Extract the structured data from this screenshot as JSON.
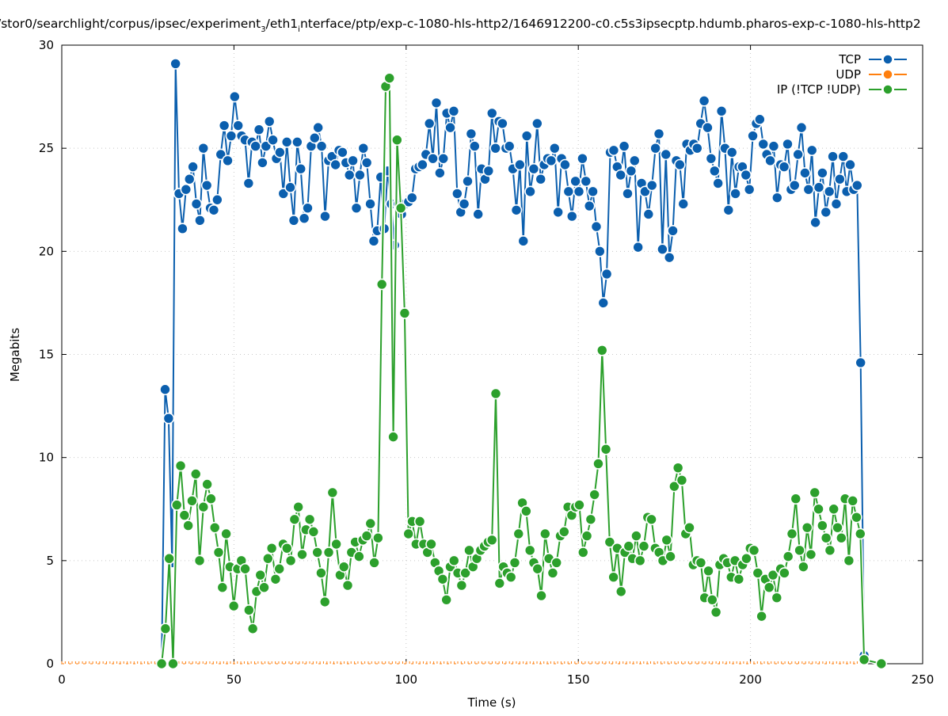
{
  "chart_data": {
    "type": "line",
    "title_parts": [
      "/stor0/searchlight/corpus/ipsec/experiment",
      "3",
      "/eth1",
      "i",
      "nterface/ptp/exp-c-1080-hls-http2/1646912200-c0.c5s3ipsecptp.hdumb.pharos-exp-c-1080-hls-http2"
    ],
    "xlabel": "Time (s)",
    "ylabel": "Megabits",
    "xlim": [
      0,
      250
    ],
    "ylim": [
      0,
      30
    ],
    "xticks": [
      "0",
      "50",
      "100",
      "150",
      "200",
      "250"
    ],
    "yticks": [
      "0",
      "5",
      "10",
      "15",
      "20",
      "25",
      "30"
    ],
    "grid": true,
    "legend_position": "top-right",
    "series": [
      {
        "name": "TCP",
        "color": "#0b5fae",
        "x_start": 29,
        "x_end": 233,
        "values": [
          0,
          13.3,
          11.9,
          4.9,
          29.1,
          22.8,
          21.1,
          23.0,
          23.5,
          24.1,
          22.3,
          21.5,
          25.0,
          23.2,
          22.1,
          22.0,
          22.5,
          24.7,
          26.1,
          24.4,
          25.6,
          27.5,
          26.1,
          25.6,
          25.4,
          23.3,
          25.3,
          25.1,
          25.9,
          24.3,
          25.1,
          26.3,
          25.4,
          24.5,
          24.8,
          22.8,
          25.3,
          23.1,
          21.5,
          25.3,
          24.0,
          21.6,
          22.1,
          25.1,
          25.5,
          26.0,
          25.1,
          21.7,
          24.4,
          24.6,
          24.2,
          24.9,
          24.8,
          24.3,
          23.7,
          24.4,
          22.1,
          23.7,
          25.0,
          24.3,
          22.3,
          20.5,
          21.0,
          23.6,
          21.1,
          23.9,
          22.3,
          20.3,
          22.3,
          21.8,
          22.3,
          22.4,
          22.6,
          24.0,
          24.1,
          24.2,
          24.7,
          26.2,
          24.5,
          27.2,
          23.8,
          24.5,
          26.7,
          26.0,
          26.8,
          22.8,
          21.9,
          22.3,
          23.4,
          25.7,
          25.1,
          21.8,
          24.0,
          23.5,
          23.9,
          26.7,
          25.0,
          26.3,
          26.2,
          25.0,
          25.1,
          24.0,
          22.0,
          24.2,
          20.5,
          25.6,
          22.9,
          24.0,
          26.2,
          23.5,
          24.2,
          24.5,
          24.4,
          25.0,
          21.9,
          24.5,
          24.2,
          22.9,
          21.7,
          23.4,
          22.9,
          24.5,
          23.4,
          22.2,
          22.9,
          21.2,
          20.0,
          17.5,
          18.9,
          24.8,
          24.9,
          24.1,
          23.7,
          25.1,
          22.8,
          23.9,
          24.4,
          20.2,
          23.3,
          22.9,
          21.8,
          23.2,
          25.0,
          25.7,
          20.1,
          24.7,
          19.7,
          21.0,
          24.4,
          24.2,
          22.3,
          25.2,
          24.9,
          25.2,
          25.0,
          26.2,
          27.3,
          26.0,
          24.5,
          23.9,
          23.3,
          26.8,
          25.0,
          22.0,
          24.8,
          22.8,
          24.1,
          24.1,
          23.7,
          23.0,
          25.6,
          26.2,
          26.4,
          25.2,
          24.7,
          24.4,
          25.1,
          22.6,
          24.2,
          24.1,
          25.2,
          23.0,
          23.2,
          24.7,
          26.0,
          23.8,
          23.0,
          24.9,
          21.4,
          23.1,
          23.8,
          21.9,
          22.9,
          24.6,
          22.3,
          23.5,
          24.6,
          22.9,
          24.2,
          23.0,
          23.2,
          14.6,
          0.4
        ]
      },
      {
        "name": "UDP",
        "color": "#ff7f0e",
        "x_start": 0,
        "x_end": 233,
        "values": [
          0,
          0
        ]
      },
      {
        "name": "IP (!TCP  !UDP)",
        "color": "#2ca02c",
        "x_start": 29,
        "x_end": 233,
        "tail_point": [
          238,
          0
        ],
        "values": [
          0,
          1.7,
          5.1,
          0,
          7.7,
          9.6,
          7.2,
          6.7,
          7.9,
          9.2,
          5.0,
          7.6,
          8.7,
          8.0,
          6.6,
          5.4,
          3.7,
          6.3,
          4.7,
          2.8,
          4.6,
          5.0,
          4.6,
          2.6,
          1.7,
          3.5,
          4.3,
          3.7,
          5.1,
          5.6,
          4.1,
          4.6,
          5.8,
          5.6,
          5.0,
          7.0,
          7.6,
          5.3,
          6.5,
          7.0,
          6.4,
          5.4,
          4.4,
          3.0,
          5.4,
          8.3,
          5.8,
          4.3,
          4.7,
          3.8,
          5.4,
          5.9,
          5.2,
          6.0,
          6.2,
          6.8,
          4.9,
          6.1,
          18.4,
          28.0,
          28.4,
          11.0,
          25.4,
          22.1,
          17.0,
          6.3,
          6.9,
          5.8,
          6.9,
          5.8,
          5.4,
          5.8,
          4.9,
          4.5,
          4.1,
          3.1,
          4.7,
          5.0,
          4.4,
          3.8,
          4.4,
          5.5,
          4.7,
          5.1,
          5.5,
          5.7,
          5.9,
          6.0,
          13.1,
          3.9,
          4.7,
          4.4,
          4.2,
          4.9,
          6.3,
          7.8,
          7.4,
          5.5,
          4.9,
          4.6,
          3.3,
          6.3,
          5.1,
          4.4,
          4.9,
          6.2,
          6.4,
          7.6,
          7.2,
          7.6,
          7.7,
          5.4,
          6.2,
          7.0,
          8.2,
          9.7,
          15.2,
          10.4,
          5.9,
          4.2,
          5.6,
          3.5,
          5.4,
          5.7,
          5.1,
          6.2,
          5.0,
          5.7,
          7.1,
          7.0,
          5.6,
          5.4,
          5.0,
          6.0,
          5.2,
          8.6,
          9.5,
          8.9,
          6.3,
          6.6,
          4.8,
          5.0,
          4.9,
          3.2,
          4.5,
          3.1,
          2.5,
          4.8,
          5.1,
          4.9,
          4.2,
          5.0,
          4.1,
          4.8,
          5.1,
          5.6,
          5.5,
          4.4,
          2.3,
          4.1,
          3.7,
          4.3,
          3.2,
          4.6,
          4.4,
          5.2,
          6.3,
          8.0,
          5.5,
          4.7,
          6.6,
          5.3,
          8.3,
          7.5,
          6.7,
          6.1,
          5.5,
          7.5,
          6.6,
          6.1,
          8.0,
          5.0,
          7.9,
          7.1,
          6.3,
          0.2
        ]
      }
    ]
  }
}
